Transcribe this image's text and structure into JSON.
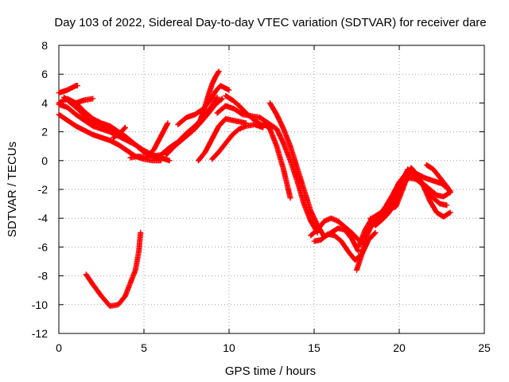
{
  "chart_data": {
    "type": "scatter",
    "title": "Day 103 of 2022, Sidereal Day-to-day VTEC variation (SDTVAR) for receiver dare",
    "xlabel": "GPS time / hours",
    "ylabel": "SDTVAR / TECUs",
    "xlim": [
      0,
      25
    ],
    "ylim": [
      -12,
      8
    ],
    "xticks": [
      "0",
      "5",
      "10",
      "15",
      "20",
      "25"
    ],
    "yticks": [
      "-12",
      "-10",
      "-8",
      "-6",
      "-4",
      "-2",
      "0",
      "2",
      "4",
      "6",
      "8"
    ],
    "grid": true,
    "legend": "none",
    "marker": "+",
    "color": "#ff0000",
    "series": [
      {
        "name": "track-a",
        "points": [
          [
            0.0,
            4.7
          ],
          [
            0.5,
            4.9
          ],
          [
            1.0,
            5.2
          ],
          [
            1.1,
            5.2
          ]
        ]
      },
      {
        "name": "track-b",
        "points": [
          [
            0.0,
            4.0
          ],
          [
            0.5,
            4.3
          ],
          [
            1.0,
            4.0
          ],
          [
            1.5,
            4.2
          ],
          [
            2.0,
            4.3
          ]
        ]
      },
      {
        "name": "track-c",
        "points": [
          [
            0.0,
            3.9
          ],
          [
            0.5,
            3.7
          ],
          [
            1.0,
            3.2
          ],
          [
            1.5,
            2.8
          ],
          [
            2.0,
            2.4
          ],
          [
            2.5,
            2.2
          ],
          [
            3.0,
            2.0
          ],
          [
            3.5,
            1.7
          ],
          [
            4.0,
            1.4
          ],
          [
            4.5,
            1.1
          ],
          [
            5.0,
            0.6
          ],
          [
            5.5,
            0.3
          ],
          [
            6.0,
            0.1
          ]
        ]
      },
      {
        "name": "track-d",
        "points": [
          [
            0.0,
            3.2
          ],
          [
            0.5,
            2.8
          ],
          [
            1.0,
            2.4
          ],
          [
            1.5,
            2.1
          ],
          [
            2.0,
            1.8
          ],
          [
            2.5,
            1.6
          ],
          [
            3.0,
            1.4
          ],
          [
            3.5,
            1.1
          ],
          [
            4.0,
            0.7
          ],
          [
            4.5,
            0.3
          ],
          [
            5.0,
            0.1
          ],
          [
            5.5,
            0.0
          ],
          [
            6.0,
            0.0
          ]
        ]
      },
      {
        "name": "track-e",
        "points": [
          [
            0.3,
            4.4
          ],
          [
            0.7,
            4.0
          ],
          [
            1.2,
            3.5
          ],
          [
            1.6,
            3.0
          ],
          [
            2.0,
            2.7
          ],
          [
            2.5,
            2.5
          ],
          [
            3.0,
            2.3
          ],
          [
            3.5,
            1.9
          ],
          [
            4.0,
            1.5
          ],
          [
            4.5,
            1.1
          ],
          [
            5.0,
            0.6
          ],
          [
            5.5,
            0.3
          ],
          [
            6.0,
            0.2
          ],
          [
            6.5,
            0.0
          ]
        ]
      },
      {
        "name": "track-f",
        "points": [
          [
            1.0,
            4.0
          ],
          [
            1.5,
            3.4
          ],
          [
            2.0,
            2.9
          ],
          [
            2.5,
            2.6
          ],
          [
            3.0,
            2.4
          ],
          [
            3.5,
            2.0
          ],
          [
            4.0,
            1.6
          ],
          [
            4.5,
            1.1
          ],
          [
            5.0,
            0.7
          ],
          [
            5.5,
            0.4
          ],
          [
            6.0,
            0.2
          ]
        ]
      },
      {
        "name": "track-g",
        "points": [
          [
            3.2,
            1.6
          ],
          [
            3.6,
            1.9
          ],
          [
            3.9,
            2.3
          ]
        ]
      },
      {
        "name": "track-h",
        "points": [
          [
            4.2,
            0.2
          ],
          [
            4.7,
            0.3
          ],
          [
            5.2,
            0.2
          ],
          [
            5.6,
            0.8
          ],
          [
            6.0,
            1.7
          ],
          [
            6.4,
            2.6
          ]
        ]
      },
      {
        "name": "track-i",
        "points": [
          [
            5.5,
            0.3
          ],
          [
            6.0,
            0.4
          ],
          [
            6.5,
            0.9
          ],
          [
            7.0,
            1.3
          ],
          [
            7.5,
            1.9
          ],
          [
            8.0,
            2.4
          ],
          [
            8.5,
            3.0
          ],
          [
            9.0,
            3.8
          ],
          [
            9.3,
            4.4
          ]
        ]
      },
      {
        "name": "track-j",
        "points": [
          [
            6.3,
            0.4
          ],
          [
            6.8,
            1.0
          ],
          [
            7.3,
            1.5
          ],
          [
            7.8,
            2.0
          ],
          [
            8.3,
            2.6
          ],
          [
            8.8,
            3.3
          ],
          [
            9.2,
            3.9
          ],
          [
            9.6,
            4.3
          ]
        ]
      },
      {
        "name": "track-k",
        "points": [
          [
            7.0,
            2.5
          ],
          [
            7.5,
            3.0
          ],
          [
            8.0,
            3.2
          ],
          [
            8.5,
            3.6
          ],
          [
            8.9,
            4.2
          ],
          [
            9.2,
            4.8
          ],
          [
            9.5,
            5.2
          ],
          [
            10.0,
            4.9
          ]
        ]
      },
      {
        "name": "track-l",
        "points": [
          [
            8.0,
            2.2
          ],
          [
            8.3,
            2.8
          ],
          [
            8.5,
            3.4
          ],
          [
            8.8,
            4.6
          ],
          [
            9.0,
            5.3
          ],
          [
            9.2,
            5.8
          ],
          [
            9.4,
            6.2
          ]
        ]
      },
      {
        "name": "track-m",
        "points": [
          [
            8.2,
            0.0
          ],
          [
            8.6,
            0.6
          ],
          [
            9.0,
            1.5
          ],
          [
            9.4,
            2.4
          ],
          [
            9.8,
            2.9
          ],
          [
            10.2,
            2.8
          ],
          [
            10.6,
            2.7
          ],
          [
            11.0,
            2.6
          ]
        ]
      },
      {
        "name": "track-n",
        "points": [
          [
            9.0,
            0.1
          ],
          [
            9.4,
            0.6
          ],
          [
            9.8,
            1.2
          ],
          [
            10.2,
            1.8
          ],
          [
            10.6,
            2.2
          ],
          [
            11.0,
            2.4
          ],
          [
            11.5,
            2.5
          ],
          [
            12.0,
            2.3
          ]
        ]
      },
      {
        "name": "track-o",
        "points": [
          [
            9.3,
            3.3
          ],
          [
            9.8,
            3.8
          ],
          [
            10.3,
            3.6
          ],
          [
            10.8,
            3.2
          ],
          [
            11.3,
            3.1
          ],
          [
            11.8,
            3.0
          ],
          [
            12.3,
            2.6
          ]
        ]
      },
      {
        "name": "track-p",
        "points": [
          [
            9.8,
            4.5
          ],
          [
            10.2,
            4.2
          ],
          [
            10.6,
            3.8
          ],
          [
            11.0,
            3.3
          ],
          [
            11.5,
            2.8
          ],
          [
            12.0,
            2.4
          ],
          [
            12.3,
            2.6
          ],
          [
            12.8,
            2.2
          ],
          [
            13.2,
            1.2
          ],
          [
            13.6,
            0.0
          ],
          [
            14.0,
            -1.4
          ],
          [
            14.4,
            -3.0
          ],
          [
            14.8,
            -4.2
          ],
          [
            15.2,
            -5.0
          ]
        ]
      },
      {
        "name": "track-q",
        "points": [
          [
            12.4,
            4.0
          ],
          [
            12.8,
            3.2
          ],
          [
            13.2,
            2.2
          ],
          [
            13.6,
            1.0
          ],
          [
            14.0,
            -0.5
          ],
          [
            14.4,
            -2.0
          ],
          [
            14.8,
            -3.5
          ],
          [
            15.2,
            -4.5
          ],
          [
            15.6,
            -5.3
          ],
          [
            16.0,
            -5.0
          ],
          [
            16.4,
            -4.7
          ],
          [
            16.8,
            -4.8
          ],
          [
            17.2,
            -5.4
          ],
          [
            17.6,
            -6.3
          ]
        ]
      },
      {
        "name": "track-r",
        "points": [
          [
            12.0,
            2.6
          ],
          [
            12.4,
            2.2
          ],
          [
            12.8,
            1.0
          ],
          [
            13.2,
            -0.6
          ],
          [
            13.6,
            -2.6
          ]
        ]
      },
      {
        "name": "track-s",
        "points": [
          [
            14.8,
            -5.2
          ],
          [
            15.2,
            -4.8
          ],
          [
            15.6,
            -4.2
          ],
          [
            16.0,
            -4.0
          ],
          [
            16.4,
            -4.2
          ],
          [
            16.8,
            -4.6
          ],
          [
            17.2,
            -5.0
          ],
          [
            17.6,
            -5.5
          ],
          [
            18.0,
            -5.8
          ]
        ]
      },
      {
        "name": "track-t",
        "points": [
          [
            15.0,
            -5.6
          ],
          [
            15.4,
            -5.5
          ],
          [
            15.8,
            -5.1
          ],
          [
            16.2,
            -5.2
          ],
          [
            16.6,
            -5.6
          ],
          [
            17.0,
            -6.3
          ],
          [
            17.4,
            -6.9
          ],
          [
            17.8,
            -6.5
          ],
          [
            18.2,
            -5.5
          ],
          [
            18.6,
            -5.0
          ]
        ]
      },
      {
        "name": "track-u",
        "points": [
          [
            17.5,
            -7.6
          ],
          [
            17.8,
            -6.5
          ],
          [
            18.1,
            -5.2
          ],
          [
            18.4,
            -4.4
          ],
          [
            18.7,
            -4.1
          ],
          [
            19.0,
            -3.7
          ],
          [
            19.4,
            -3.4
          ],
          [
            19.8,
            -3.2
          ],
          [
            20.2,
            -2.0
          ],
          [
            20.5,
            -1.0
          ],
          [
            20.7,
            -0.5
          ],
          [
            21.0,
            -0.9
          ],
          [
            21.5,
            -1.2
          ],
          [
            22.0,
            -1.4
          ],
          [
            22.5,
            -1.6
          ],
          [
            23.0,
            -2.1
          ]
        ]
      },
      {
        "name": "track-v",
        "points": [
          [
            17.6,
            -6.0
          ],
          [
            18.0,
            -4.8
          ],
          [
            18.4,
            -4.0
          ],
          [
            18.8,
            -3.7
          ],
          [
            19.3,
            -3.5
          ],
          [
            19.8,
            -2.6
          ],
          [
            20.2,
            -1.4
          ],
          [
            20.5,
            -0.6
          ],
          [
            21.0,
            -1.2
          ],
          [
            21.4,
            -1.6
          ],
          [
            21.8,
            -2.0
          ],
          [
            22.2,
            -2.4
          ],
          [
            22.6,
            -2.5
          ],
          [
            23.0,
            -2.2
          ]
        ]
      },
      {
        "name": "track-w",
        "points": [
          [
            18.0,
            -5.2
          ],
          [
            18.4,
            -4.5
          ],
          [
            18.8,
            -3.8
          ],
          [
            19.2,
            -3.2
          ],
          [
            19.6,
            -2.4
          ],
          [
            20.0,
            -1.5
          ],
          [
            20.4,
            -0.9
          ],
          [
            20.8,
            -0.7
          ],
          [
            21.2,
            -1.3
          ],
          [
            21.6,
            -2.1
          ],
          [
            22.0,
            -2.6
          ],
          [
            22.4,
            -3.0
          ],
          [
            22.8,
            -3.1
          ]
        ]
      },
      {
        "name": "track-x",
        "points": [
          [
            18.3,
            -4.0
          ],
          [
            18.6,
            -4.5
          ],
          [
            19.0,
            -4.1
          ],
          [
            19.4,
            -3.6
          ],
          [
            19.8,
            -2.6
          ],
          [
            20.2,
            -1.6
          ],
          [
            20.6,
            -1.2
          ],
          [
            21.0,
            -1.3
          ],
          [
            21.4,
            -1.7
          ],
          [
            21.8,
            -2.8
          ],
          [
            22.2,
            -3.6
          ],
          [
            22.6,
            -3.9
          ],
          [
            23.0,
            -3.6
          ]
        ]
      },
      {
        "name": "track-y",
        "points": [
          [
            21.6,
            -0.3
          ],
          [
            22.0,
            -0.6
          ],
          [
            22.4,
            -1.2
          ],
          [
            22.8,
            -1.8
          ],
          [
            23.0,
            -2.2
          ]
        ]
      },
      {
        "name": "track-z",
        "points": [
          [
            1.6,
            -7.9
          ],
          [
            2.0,
            -8.6
          ],
          [
            2.5,
            -9.4
          ],
          [
            3.0,
            -10.1
          ],
          [
            3.5,
            -10.0
          ],
          [
            3.9,
            -9.4
          ],
          [
            4.2,
            -8.5
          ],
          [
            4.5,
            -7.6
          ],
          [
            4.7,
            -6.3
          ],
          [
            4.8,
            -5.0
          ]
        ]
      }
    ]
  }
}
